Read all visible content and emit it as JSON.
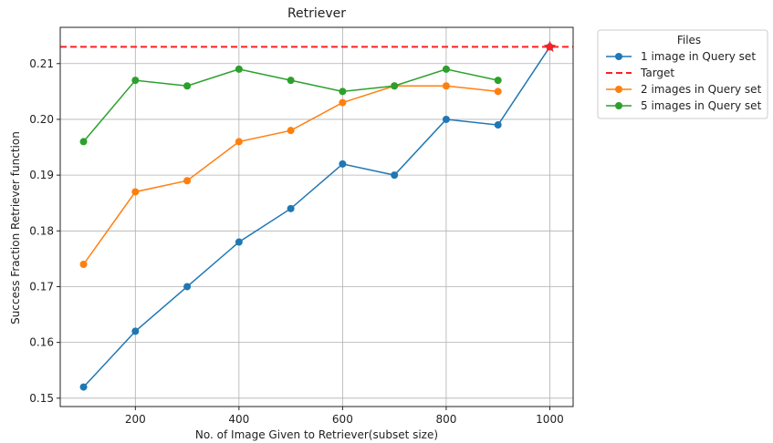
{
  "chart_data": {
    "type": "line",
    "title": "Retriever",
    "xlabel": "No. of Image Given to Retriever(subset size)",
    "ylabel": "Success Fraction Retriever function",
    "xlim": [
      55,
      1045
    ],
    "ylim": [
      0.1485,
      0.2165
    ],
    "xticks": [
      200,
      400,
      600,
      800,
      1000
    ],
    "xtick_labels": [
      "200",
      "400",
      "600",
      "800",
      "1000"
    ],
    "yticks": [
      0.15,
      0.16,
      0.17,
      0.18,
      0.19,
      0.2,
      0.21
    ],
    "ytick_labels": [
      "0.15",
      "0.16",
      "0.17",
      "0.18",
      "0.19",
      "0.20",
      "0.21"
    ],
    "grid": true,
    "legend": {
      "title": "Files",
      "placement": "outside-top-right",
      "entries": [
        "1 image in Query set",
        "Target",
        "2 images in Query set",
        "5 images in Query set"
      ]
    },
    "target": {
      "name": "Target",
      "value": 0.213,
      "color": "#ff1f1f",
      "style": "dashed"
    },
    "target_marker": {
      "x": 1000,
      "y": 0.213,
      "shape": "star",
      "color": "#ff1f1f"
    },
    "series": [
      {
        "name": "1 image in Query set",
        "color": "#1f77b4",
        "x": [
          100,
          200,
          300,
          400,
          500,
          600,
          700,
          800,
          900,
          1000
        ],
        "y": [
          0.152,
          0.162,
          0.17,
          0.178,
          0.184,
          0.192,
          0.19,
          0.2,
          0.199,
          0.213
        ]
      },
      {
        "name": "2 images in Query set",
        "color": "#ff7f0e",
        "x": [
          100,
          200,
          300,
          400,
          500,
          600,
          700,
          800,
          900
        ],
        "y": [
          0.174,
          0.187,
          0.189,
          0.196,
          0.198,
          0.203,
          0.206,
          0.206,
          0.205
        ]
      },
      {
        "name": "5 images in Query set",
        "color": "#2ca02c",
        "x": [
          100,
          200,
          300,
          400,
          500,
          600,
          700,
          800,
          900
        ],
        "y": [
          0.196,
          0.207,
          0.206,
          0.209,
          0.207,
          0.205,
          0.206,
          0.209,
          0.207
        ]
      }
    ]
  }
}
